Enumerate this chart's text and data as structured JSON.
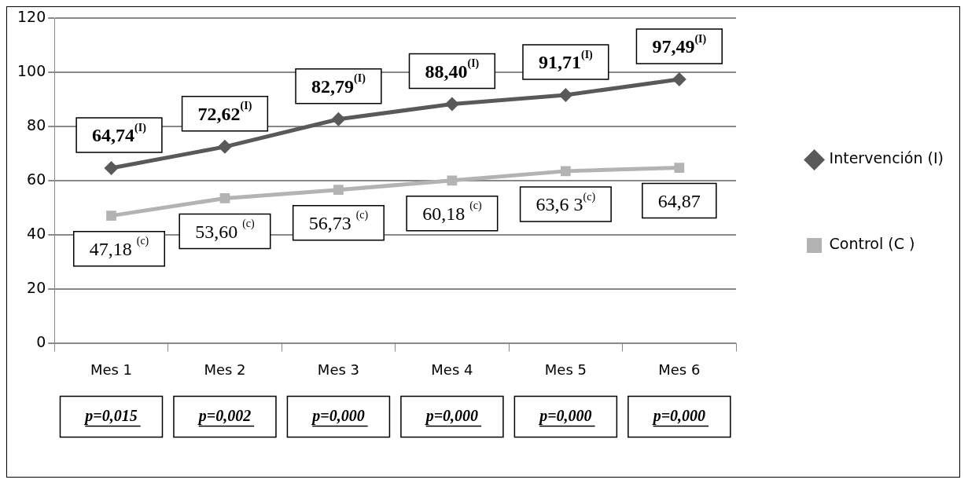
{
  "chart_data": {
    "type": "line",
    "categories": [
      "Mes 1",
      "Mes 2",
      "Mes 3",
      "Mes 4",
      "Mes 5",
      "Mes 6"
    ],
    "series": [
      {
        "name": "Intervención (I)",
        "color": "#595959",
        "marker": "diamond",
        "values": [
          64.74,
          72.62,
          82.79,
          88.4,
          91.71,
          97.49
        ],
        "value_labels": [
          "64,74$^{(I)}$",
          "72,62$^{(I)}$",
          "82,79$^{(I)}$",
          "88,40$^{(I)}$",
          "91,71$^{(I)}$",
          "97,49$^{(I)}$"
        ]
      },
      {
        "name": "Control (C )",
        "color": "#b3b3b3",
        "marker": "square",
        "values": [
          47.18,
          53.6,
          56.73,
          60.18,
          63.63,
          64.87
        ],
        "value_labels": [
          "47,18 $^{(c)}$",
          "53,60 $^{(c)}$",
          "56,73 $^{(c)}$",
          "60,18 $^{(c)}$",
          "63,6 3$^{(c)}$",
          "64,87"
        ]
      }
    ],
    "ylim": [
      0,
      120
    ],
    "yticks": [
      0,
      20,
      40,
      60,
      80,
      100,
      120
    ],
    "grid": "y",
    "legend": "right",
    "annotations": [
      "p=0,015",
      "p=0,002",
      "p=0,000",
      "p=0,000",
      "p=0,000",
      "p=0,000"
    ]
  }
}
